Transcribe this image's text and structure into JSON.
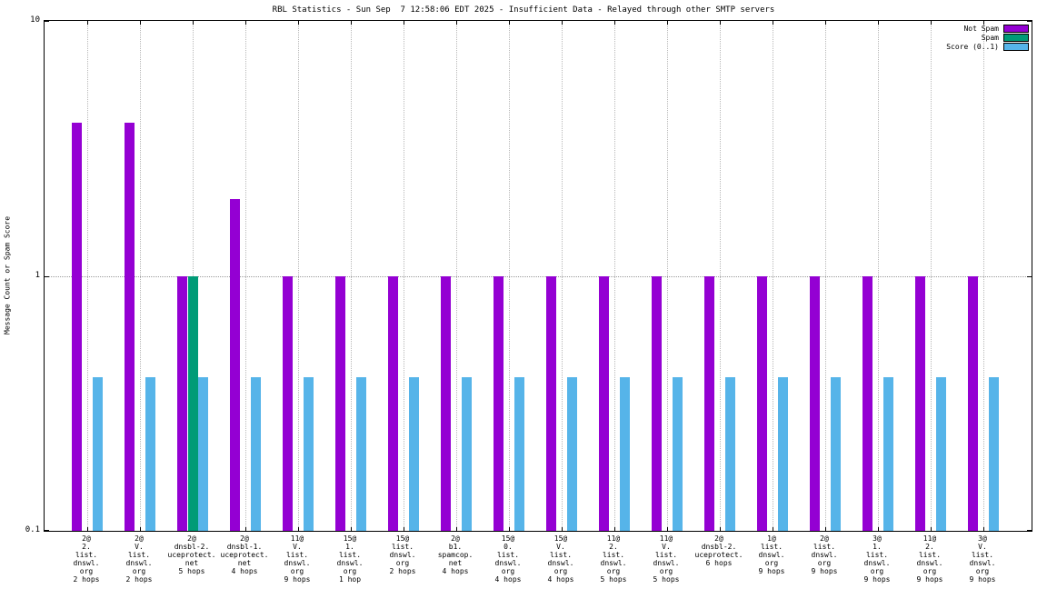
{
  "title": "RBL Statistics - Sun Sep  7 12:58:06 EDT 2025 - Insufficient Data - Relayed through other SMTP servers",
  "ylabel": "Message Count or Spam Score",
  "legend": [
    {
      "label": "Not Spam",
      "color": "#9400d3"
    },
    {
      "label": "Spam",
      "color": "#009b77"
    },
    {
      "label": "Score (0..1)",
      "color": "#56b4e9"
    }
  ],
  "chart_data": {
    "type": "bar",
    "yscale": "log",
    "ylim": [
      0.1,
      10
    ],
    "yticks": [
      0.1,
      1,
      10
    ],
    "ytick_labels": [
      "0.1",
      "1",
      "10"
    ],
    "grid": true,
    "legend_position": "top-right",
    "title": "RBL Statistics - Sun Sep  7 12:58:06 EDT 2025 - Insufficient Data - Relayed through other SMTP servers",
    "xlabel": "",
    "ylabel": "Message Count or Spam Score",
    "categories": [
      [
        "2@",
        "2.",
        "list.",
        "dnswl.",
        "org",
        "2 hops"
      ],
      [
        "2@",
        "V.",
        "list.",
        "dnswl.",
        "org",
        "2 hops"
      ],
      [
        "2@",
        "dnsbl-2.",
        "uceprotect.",
        "net",
        "5 hops"
      ],
      [
        "2@",
        "dnsbl-1.",
        "uceprotect.",
        "net",
        "4 hops"
      ],
      [
        "11@",
        "V.",
        "list.",
        "dnswl.",
        "org",
        "9 hops"
      ],
      [
        "15@",
        "1.",
        "list.",
        "dnswl.",
        "org",
        "1 hop"
      ],
      [
        "15@",
        "list.",
        "dnswl.",
        "org",
        "2 hops"
      ],
      [
        "2@",
        "b1.",
        "spamcop.",
        "net",
        "4 hops"
      ],
      [
        "15@",
        "0.",
        "list.",
        "dnswl.",
        "org",
        "4 hops"
      ],
      [
        "15@",
        "V.",
        "list.",
        "dnswl.",
        "org",
        "4 hops"
      ],
      [
        "11@",
        "2.",
        "list.",
        "dnswl.",
        "org",
        "5 hops"
      ],
      [
        "11@",
        "V.",
        "list.",
        "dnswl.",
        "org",
        "5 hops"
      ],
      [
        "2@",
        "dnsbl-2.",
        "uceprotect.",
        "6 hops"
      ],
      [
        "1@",
        "list.",
        "dnswl.",
        "org",
        "9 hops"
      ],
      [
        "2@",
        "list.",
        "dnswl.",
        "org",
        "9 hops"
      ],
      [
        "3@",
        "1.",
        "list.",
        "dnswl.",
        "org",
        "9 hops"
      ],
      [
        "11@",
        "2.",
        "list.",
        "dnswl.",
        "org",
        "9 hops"
      ],
      [
        "3@",
        "V.",
        "list.",
        "dnswl.",
        "org",
        "9 hops"
      ]
    ],
    "series": [
      {
        "name": "Not Spam",
        "color": "#9400d3",
        "values": [
          4,
          4,
          1,
          2,
          1,
          1,
          1,
          1,
          1,
          1,
          1,
          1,
          1,
          1,
          1,
          1,
          1,
          1
        ]
      },
      {
        "name": "Spam",
        "color": "#009b77",
        "values": [
          0,
          0,
          1,
          0,
          0,
          0,
          0,
          0,
          0,
          0,
          0,
          0,
          0,
          0,
          0,
          0,
          0,
          0
        ]
      },
      {
        "name": "Score (0..1)",
        "color": "#56b4e9",
        "values": [
          0.4,
          0.4,
          0.4,
          0.4,
          0.4,
          0.4,
          0.4,
          0.4,
          0.4,
          0.4,
          0.4,
          0.4,
          0.4,
          0.4,
          0.4,
          0.4,
          0.4,
          0.4
        ]
      }
    ]
  }
}
